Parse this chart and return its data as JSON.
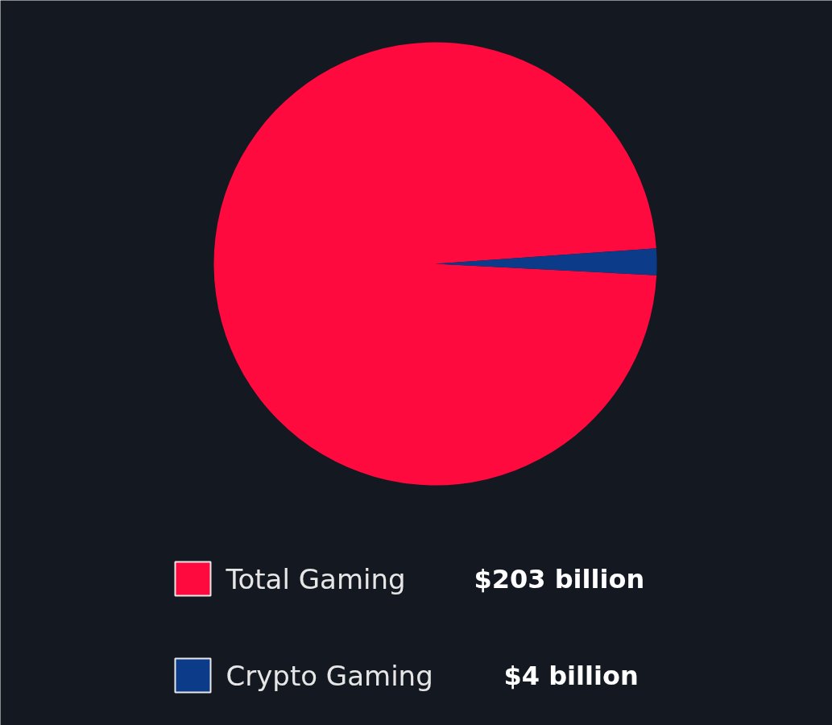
{
  "chart_data": {
    "type": "pie",
    "categories": [
      "Total Gaming",
      "Crypto Gaming"
    ],
    "values": [
      203,
      4
    ],
    "value_labels": [
      "$203 billion",
      "$4 billion"
    ],
    "colors": [
      "#ff0a3f",
      "#0c3b8a"
    ],
    "legend": "bottom"
  }
}
